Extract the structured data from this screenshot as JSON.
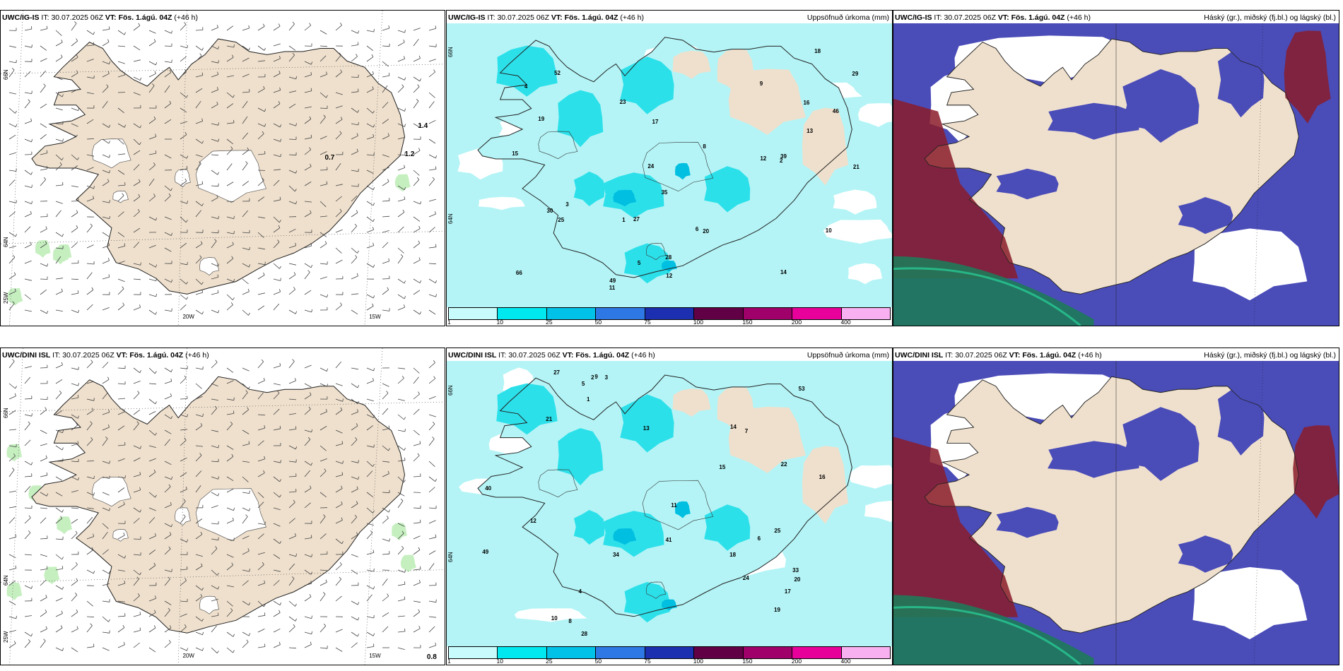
{
  "panels": [
    {
      "model": "UWC/IG-IS",
      "init_label": "IT:",
      "init": "30.07.2025 06Z",
      "valid_label": "VT:",
      "valid": "Fös. 1.ágú. 04Z",
      "lead": "(+46 h)",
      "right_title": "",
      "kind": "wind",
      "lon_labels": [
        "20W",
        "15W",
        "25W"
      ],
      "lat_labels": [
        "66N",
        "64N"
      ],
      "values": [
        "0.7",
        "1.4",
        "1.2"
      ]
    },
    {
      "model": "UWC/IG-IS",
      "init_label": "IT:",
      "init": "30.07.2025 06Z",
      "valid_label": "VT:",
      "valid": "Fös. 1.ágú. 04Z",
      "lead": "(+46 h)",
      "right_title": "Uppsöfnuð úrkoma (mm)",
      "kind": "precip",
      "lat_labels": [
        "66N",
        "64N"
      ],
      "values": [
        "12",
        "14",
        "39",
        "35",
        "28",
        "23",
        "24",
        "30",
        "27",
        "21",
        "25",
        "52",
        "49",
        "46",
        "66",
        "29",
        "20",
        "17",
        "15",
        "8",
        "6",
        "4",
        "3",
        "2",
        "1",
        "10",
        "5",
        "19",
        "18",
        "16",
        "13",
        "12",
        "11",
        "9"
      ]
    },
    {
      "model": "UWC/IG-IS",
      "init_label": "IT:",
      "init": "30.07.2025 06Z",
      "valid_label": "VT:",
      "valid": "Fös. 1.ágú. 04Z",
      "lead": "(+46 h)",
      "right_title": "Háský (gr.), miðský (fj.bl.) og lágský (bl.)",
      "kind": "cloud"
    },
    {
      "model": "UWC/DINI ISL",
      "init_label": "IT:",
      "init": "30.07.2025 06Z",
      "valid_label": "VT:",
      "valid": "Fös. 1.ágú. 04Z",
      "lead": "(+46 h)",
      "right_title": "",
      "kind": "wind",
      "lon_labels": [
        "20W",
        "15W",
        "25W"
      ],
      "lat_labels": [
        "66N",
        "64N"
      ],
      "values": [
        "0.8"
      ]
    },
    {
      "model": "UWC/DINI ISL",
      "init_label": "IT:",
      "init": "30.07.2025 06Z",
      "valid_label": "VT:",
      "valid": "Fös. 1.ágú. 04Z",
      "lead": "(+46 h)",
      "right_title": "Uppsöfnuð úrkoma (mm)",
      "kind": "precip",
      "lat_labels": [
        "66N",
        "64N"
      ],
      "values": [
        "13",
        "19",
        "22",
        "24",
        "21",
        "18",
        "20",
        "28",
        "15",
        "12",
        "34",
        "49",
        "40",
        "25",
        "27",
        "33",
        "53",
        "41",
        "17",
        "16",
        "10",
        "9",
        "8",
        "7",
        "6",
        "5",
        "4",
        "3",
        "2",
        "1",
        "11",
        "14"
      ]
    },
    {
      "model": "UWC/DINI ISL",
      "init_label": "IT:",
      "init": "30.07.2025 06Z",
      "valid_label": "VT:",
      "valid": "Fös. 1.ágú. 04Z",
      "lead": "(+46 h)",
      "right_title": "Háský (gr.), miðský (fj.bl.) og lágský (bl.)",
      "kind": "cloud"
    }
  ],
  "precip_legend": {
    "ticks": [
      "1",
      "10",
      "25",
      "50",
      "75",
      "100",
      "150",
      "200",
      "400"
    ],
    "colors": [
      "#c8fbfb",
      "#00e8ef",
      "#00c2e8",
      "#2e78e6",
      "#1b2fb0",
      "#620045",
      "#a0006a",
      "#e8009a",
      "#f8b0f0"
    ]
  },
  "colors": {
    "land": "#efe0cd",
    "coast": "#222222",
    "precip_light": "#b4f4f6",
    "precip_med": "#2ce0ea",
    "cloud_high": "#1e7a5a",
    "cloud_mid": "#8a1c2a",
    "cloud_low": "#4a4cb8"
  }
}
